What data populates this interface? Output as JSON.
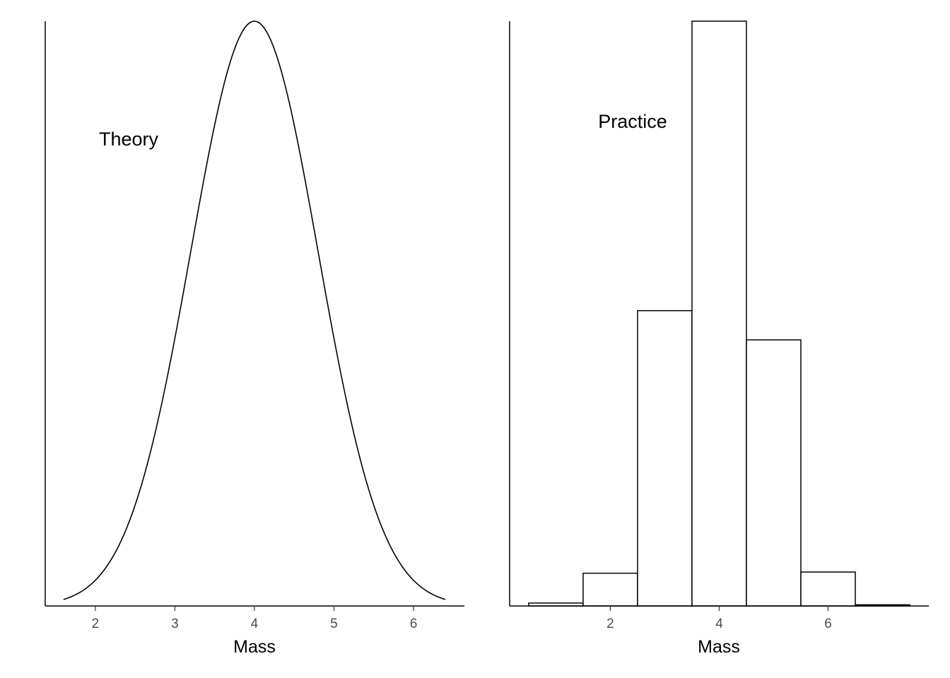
{
  "chart_data": [
    {
      "type": "line",
      "panel": "left",
      "annotation": "Theory",
      "xlabel": "Mass",
      "ylabel": "",
      "xlim": [
        1.37,
        6.64
      ],
      "xticks": [
        2,
        3,
        4,
        5,
        6
      ],
      "curve": {
        "kind": "normal-density",
        "mean": 4,
        "sd": 0.8,
        "x_from": 1.6,
        "x_to": 6.4
      },
      "grid": false,
      "legend": "none"
    },
    {
      "type": "bar",
      "panel": "right",
      "annotation": "Practice",
      "xlabel": "Mass",
      "ylabel": "",
      "xlim": [
        0.15,
        7.85
      ],
      "xticks": [
        2,
        4,
        6
      ],
      "bin_width": 1,
      "categories": [
        "1",
        "2",
        "3",
        "4",
        "5",
        "6",
        "7"
      ],
      "values": [
        0.5,
        5.6,
        50.5,
        100,
        45.5,
        5.8,
        0.2
      ],
      "grid": false,
      "legend": "none"
    }
  ]
}
